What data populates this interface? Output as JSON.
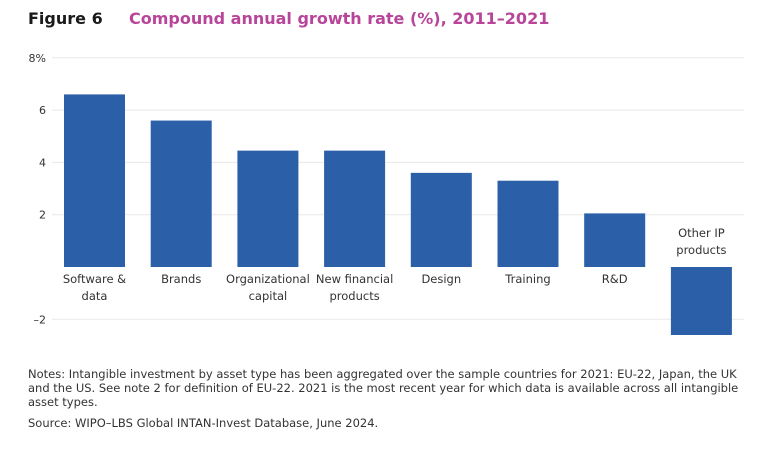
{
  "figure": {
    "label": "Figure 6",
    "title": "Compound annual growth rate (%), 2011–2021"
  },
  "chart_data": {
    "type": "bar",
    "title": "Compound annual growth rate (%), 2011–2021",
    "xlabel": "",
    "ylabel": "",
    "categories": [
      [
        "Software &",
        "data"
      ],
      [
        "Brands"
      ],
      [
        "Organizational",
        "capital"
      ],
      [
        "New financial",
        "products"
      ],
      [
        "Design"
      ],
      [
        "Training"
      ],
      [
        "R&D"
      ],
      [
        "Other IP",
        "products"
      ]
    ],
    "values": [
      6.6,
      5.6,
      4.45,
      4.45,
      3.6,
      3.3,
      2.05,
      -2.6
    ],
    "ylim": [
      -2.6,
      8
    ],
    "yticks": [
      {
        "value": 8,
        "label": "8%"
      },
      {
        "value": 6,
        "label": "6"
      },
      {
        "value": 4,
        "label": "4"
      },
      {
        "value": 2,
        "label": "2"
      },
      {
        "value": -2,
        "label": "–2"
      }
    ],
    "grid": true,
    "legend": "none",
    "bar_color": "#2b5fa8",
    "grid_color": "#e8e8e8"
  },
  "notes": "Notes: Intangible investment by asset type has been aggregated over the sample countries for 2021: EU-22, Japan, the UK and the US. See note 2 for definition of EU-22. 2021 is the most recent year for which data is available across all intangible asset types.",
  "source": "Source: WIPO–LBS Global INTAN-Invest Database, June 2024."
}
